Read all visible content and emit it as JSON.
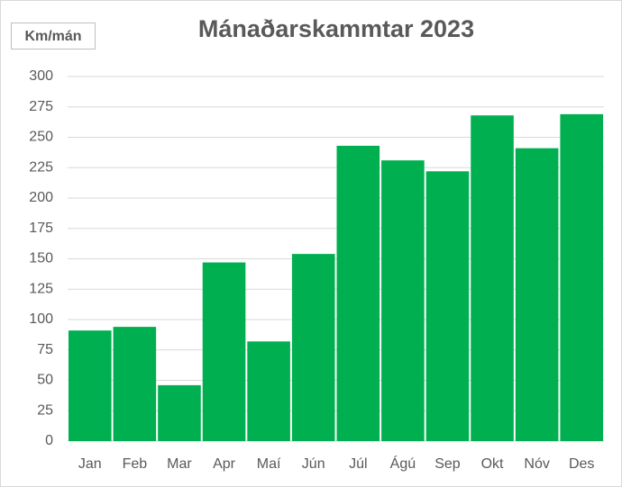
{
  "chart_data": {
    "type": "bar",
    "title": "Mánaðarskammtar 2023",
    "y_label": "Km/mán",
    "categories": [
      "Jan",
      "Feb",
      "Mar",
      "Apr",
      "Maí",
      "Jún",
      "Júl",
      "Ágú",
      "Sep",
      "Okt",
      "Nóv",
      "Des"
    ],
    "values": [
      91,
      94,
      46,
      147,
      82,
      154,
      243,
      231,
      222,
      268,
      241,
      269
    ],
    "color": "#00b050",
    "ylim": [
      0,
      300
    ],
    "yticks": [
      0,
      25,
      50,
      75,
      100,
      125,
      150,
      175,
      200,
      225,
      250,
      275,
      300
    ],
    "grid": true
  }
}
